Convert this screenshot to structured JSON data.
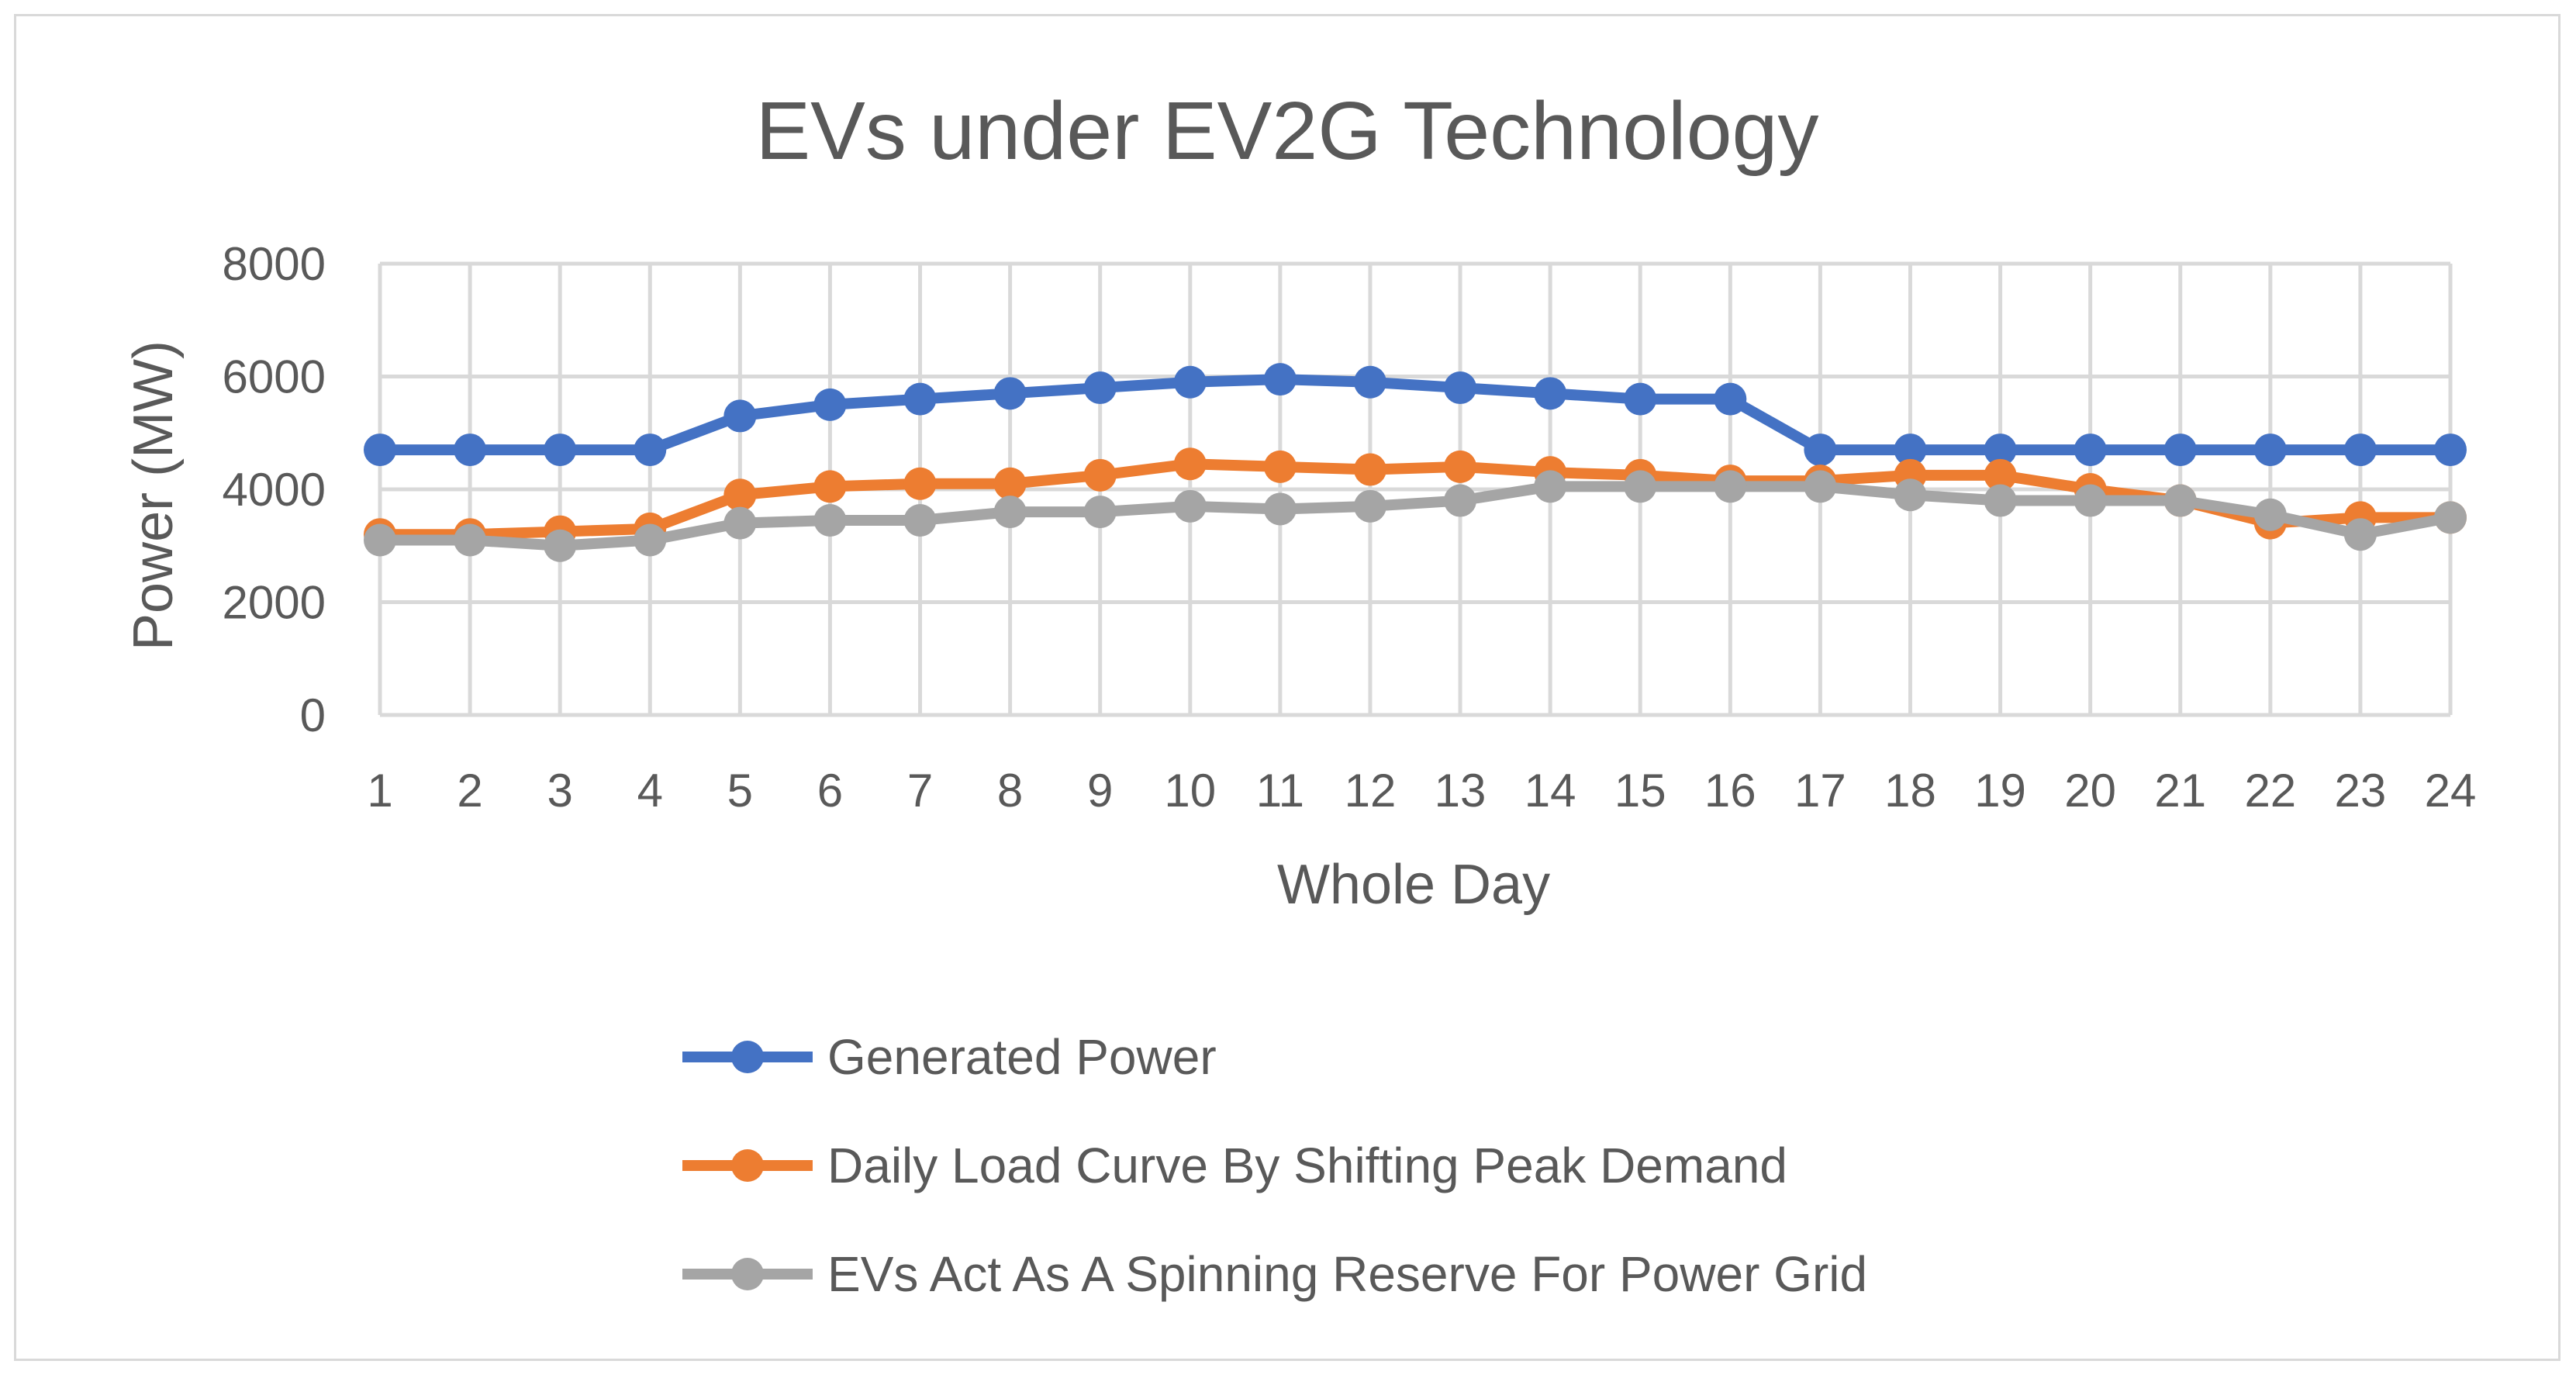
{
  "chart_data": {
    "type": "line",
    "title": "EVs under EV2G Technology",
    "xlabel": "Whole Day",
    "ylabel": "Power (MW)",
    "ylim": [
      0,
      8000
    ],
    "yticks": [
      0,
      2000,
      4000,
      6000,
      8000
    ],
    "grid": true,
    "legend_position": "bottom",
    "categories": [
      "1",
      "2",
      "3",
      "4",
      "5",
      "6",
      "7",
      "8",
      "9",
      "10",
      "11",
      "12",
      "13",
      "14",
      "15",
      "16",
      "17",
      "18",
      "19",
      "20",
      "21",
      "22",
      "23",
      "24"
    ],
    "series": [
      {
        "name": "Generated Power",
        "color": "#4472c4",
        "values": [
          4700,
          4700,
          4700,
          4700,
          5300,
          5500,
          5600,
          5700,
          5800,
          5900,
          5950,
          5900,
          5800,
          5700,
          5600,
          5600,
          4700,
          4700,
          4700,
          4700,
          4700,
          4700,
          4700,
          4700
        ]
      },
      {
        "name": "Daily Load Curve By Shifting Peak Demand",
        "color": "#ed7d31",
        "values": [
          3200,
          3200,
          3250,
          3300,
          3900,
          4050,
          4100,
          4100,
          4250,
          4450,
          4400,
          4350,
          4400,
          4300,
          4250,
          4150,
          4150,
          4250,
          4250,
          4000,
          3800,
          3400,
          3500,
          3500
        ]
      },
      {
        "name": "EVs Act As A Spinning Reserve For Power Grid",
        "color": "#a5a5a5",
        "values": [
          3100,
          3100,
          3000,
          3100,
          3400,
          3450,
          3450,
          3600,
          3600,
          3700,
          3650,
          3700,
          3800,
          4050,
          4050,
          4050,
          4050,
          3900,
          3800,
          3800,
          3800,
          3550,
          3200,
          3500
        ]
      }
    ]
  }
}
